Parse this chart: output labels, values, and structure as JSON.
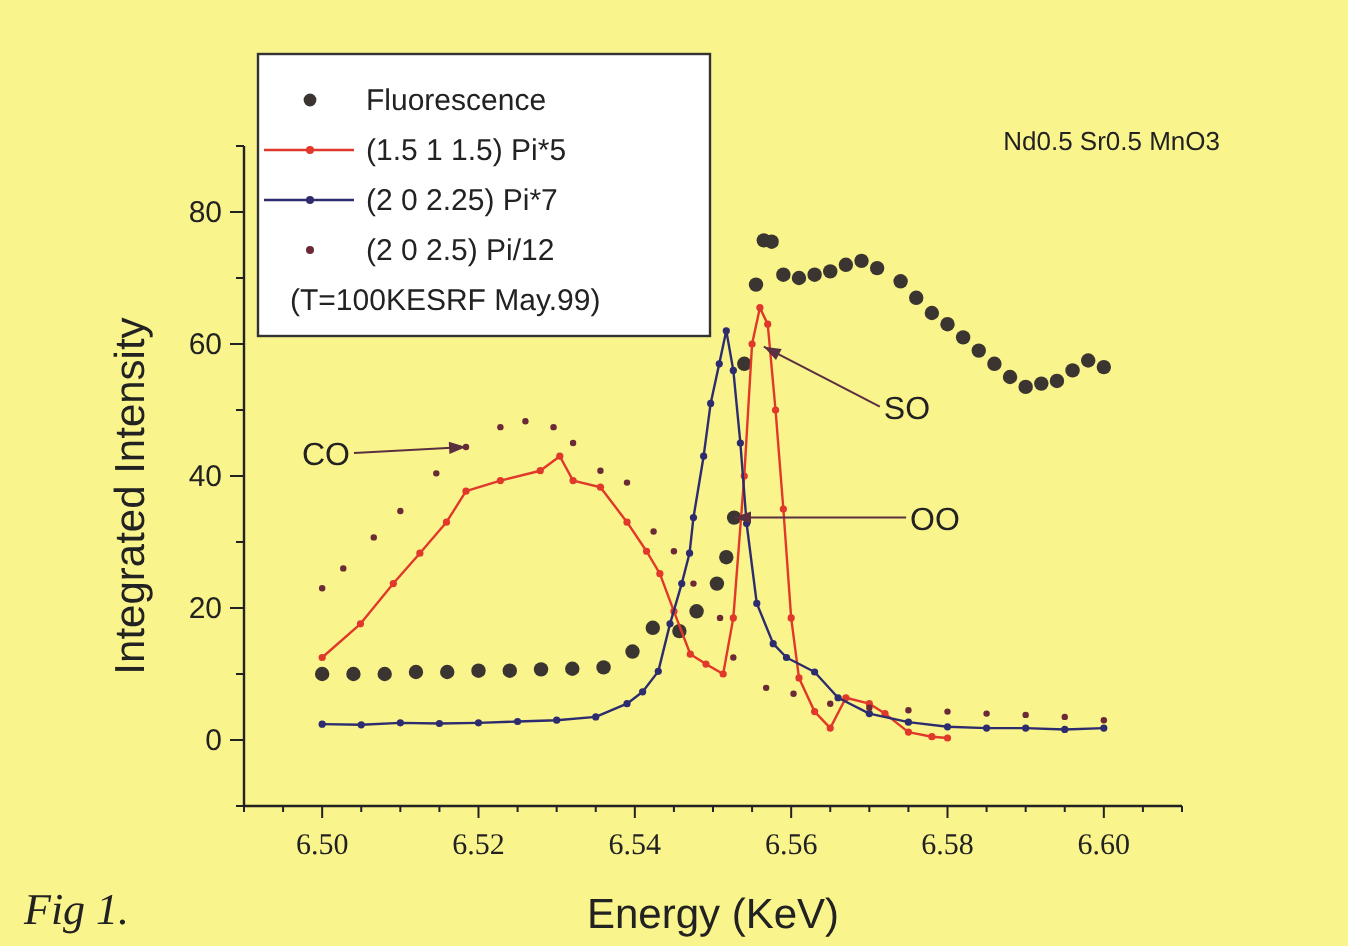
{
  "chart_data": {
    "type": "scatter",
    "subtitle": "Nd0.5 Sr0.5 MnO3",
    "xlabel": "Energy (KeV)",
    "ylabel": "Integrated Intensity",
    "legend_title": "(T=100KESRF May.99)",
    "legend": "top left",
    "grid": false,
    "xlim": [
      6.49,
      6.61
    ],
    "xticks": [
      {
        "value": 6.49,
        "label": null
      },
      {
        "value": 6.495,
        "label": null
      },
      {
        "value": 6.5,
        "label": "6.50"
      },
      {
        "value": 6.505,
        "label": null
      },
      {
        "value": 6.51,
        "label": null
      },
      {
        "value": 6.515,
        "label": null
      },
      {
        "value": 6.52,
        "label": "6.52"
      },
      {
        "value": 6.525,
        "label": null
      },
      {
        "value": 6.53,
        "label": null
      },
      {
        "value": 6.535,
        "label": null
      },
      {
        "value": 6.54,
        "label": "6.54"
      },
      {
        "value": 6.545,
        "label": null
      },
      {
        "value": 6.55,
        "label": null
      },
      {
        "value": 6.555,
        "label": null
      },
      {
        "value": 6.56,
        "label": "6.56"
      },
      {
        "value": 6.565,
        "label": null
      },
      {
        "value": 6.57,
        "label": null
      },
      {
        "value": 6.575,
        "label": null
      },
      {
        "value": 6.58,
        "label": "6.58"
      },
      {
        "value": 6.585,
        "label": null
      },
      {
        "value": 6.59,
        "label": null
      },
      {
        "value": 6.595,
        "label": null
      },
      {
        "value": 6.6,
        "label": "6.60"
      },
      {
        "value": 6.605,
        "label": null
      },
      {
        "value": 6.61,
        "label": null
      }
    ],
    "ylim": [
      -10,
      90
    ],
    "yticks": [
      {
        "value": -10,
        "label": null
      },
      0,
      {
        "value": 10,
        "label": null
      },
      20,
      {
        "value": 30,
        "label": null
      },
      40,
      {
        "value": 50,
        "label": null
      },
      60,
      {
        "value": 70,
        "label": null
      },
      80,
      {
        "value": 90,
        "label": null
      }
    ],
    "series": [
      {
        "name": "Fluorescence",
        "marker": "circle",
        "color": "#3a3530",
        "x": [
          6.5,
          6.504,
          6.508,
          6.512,
          6.516,
          6.52,
          6.524,
          6.528,
          6.532,
          6.536,
          6.5397,
          6.5423,
          6.5457,
          6.5479,
          6.5505,
          6.5517,
          6.5527,
          6.554,
          6.5555,
          6.5565,
          6.5575,
          6.559,
          6.561,
          6.563,
          6.565,
          6.567,
          6.569,
          6.571,
          6.574,
          6.576,
          6.578,
          6.58,
          6.582,
          6.584,
          6.586,
          6.588,
          6.59,
          6.592,
          6.594,
          6.596,
          6.598,
          6.6
        ],
        "values": [
          10,
          10,
          10,
          10.3,
          10.3,
          10.5,
          10.5,
          10.7,
          10.8,
          11,
          13.4,
          17,
          16.5,
          19.5,
          23.7,
          27.7,
          33.7,
          57,
          69,
          75.7,
          75.5,
          70.5,
          70,
          70.5,
          71,
          72,
          72.6,
          71.5,
          69.5,
          67,
          64.7,
          63,
          61,
          59,
          57,
          55,
          53.5,
          54,
          54.4,
          56,
          57.5,
          56.5
        ]
      },
      {
        "name": "(1.5 1 1.5) Pi*5",
        "type": "line",
        "marker": "circle",
        "line_style": "solid",
        "color": "#e0382a",
        "x": [
          6.5,
          6.5049,
          6.5091,
          6.5125,
          6.5159,
          6.5184,
          6.5228,
          6.5279,
          6.5304,
          6.5321,
          6.5356,
          6.539,
          6.5415,
          6.5432,
          6.545,
          6.5471,
          6.5491,
          6.5513,
          6.5526,
          6.554,
          6.555,
          6.556,
          6.557,
          6.558,
          6.559,
          6.56,
          6.561,
          6.563,
          6.565,
          6.567,
          6.57,
          6.572,
          6.575,
          6.578,
          6.58
        ],
        "values": [
          12.5,
          17.6,
          23.7,
          28.3,
          33,
          37.7,
          39.3,
          40.8,
          43,
          39.3,
          38.3,
          33,
          28.6,
          25.2,
          19.5,
          13,
          11.5,
          10,
          18.5,
          40,
          60,
          65.5,
          63,
          50,
          35,
          18.5,
          9.4,
          4.3,
          1.8,
          6.4,
          5.5,
          4,
          1.2,
          0.5,
          0.3
        ]
      },
      {
        "name": "(2 0 2.25) Pi*7",
        "type": "line",
        "marker": "circle",
        "line_style": "solid",
        "color": "#2c2c6e",
        "x": [
          6.5,
          6.505,
          6.51,
          6.515,
          6.52,
          6.525,
          6.53,
          6.535,
          6.539,
          6.541,
          6.543,
          6.5445,
          6.546,
          6.547,
          6.5475,
          6.5488,
          6.5497,
          6.5508,
          6.5517,
          6.5526,
          6.5535,
          6.5543,
          6.5556,
          6.5577,
          6.5594,
          6.563,
          6.566,
          6.57,
          6.575,
          6.58,
          6.585,
          6.59,
          6.595,
          6.6
        ],
        "values": [
          2.4,
          2.3,
          2.6,
          2.5,
          2.6,
          2.8,
          3,
          3.5,
          5.5,
          7.3,
          10.4,
          17.6,
          23.7,
          28.3,
          33.7,
          43,
          51,
          57,
          62,
          56,
          45,
          32.8,
          20.7,
          14.6,
          12.5,
          10.3,
          6.4,
          4,
          2.7,
          2,
          1.8,
          1.8,
          1.6,
          1.8
        ]
      },
      {
        "name": "(2 0 2.5) Pi/12",
        "marker": "circle",
        "color": "#6b2a35",
        "x": [
          6.5,
          6.5027,
          6.5066,
          6.51,
          6.5146,
          6.5184,
          6.5228,
          6.526,
          6.5296,
          6.5321,
          6.5356,
          6.539,
          6.5424,
          6.545,
          6.5475,
          6.5509,
          6.5526,
          6.5568,
          6.5603,
          6.565,
          6.57,
          6.575,
          6.58,
          6.585,
          6.59,
          6.595,
          6.6
        ],
        "values": [
          23,
          26,
          30.7,
          34.7,
          40.4,
          44.4,
          47.4,
          48.3,
          47.4,
          45,
          40.8,
          39,
          31.6,
          28.6,
          23.7,
          18.5,
          12.5,
          7.9,
          7,
          5.5,
          4.9,
          4.5,
          4.3,
          4,
          3.8,
          3.5,
          3
        ]
      }
    ],
    "annotations": [
      {
        "text": "CO",
        "x": 6.5184,
        "y": 44.4
      },
      {
        "text": "SO",
        "x": 6.5565,
        "y": 59.6
      },
      {
        "text": "OO",
        "x": 6.5527,
        "y": 33.7
      },
      "Fig 1."
    ]
  }
}
